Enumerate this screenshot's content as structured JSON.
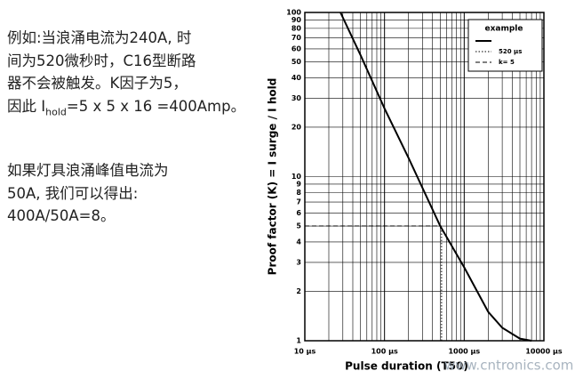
{
  "text": {
    "paragraph1": [
      "例如:当浪涌电流为240A, 时",
      "间为520微秒时，C16型断路",
      "器不会被触发。K因子为5，",
      [
        "因此 I",
        "hold",
        "=5 x 5 x 16 =400Amp。"
      ]
    ],
    "paragraph2": [
      "如果灯具浪涌峰值电流为",
      "50A, 我们可以得出:",
      "400A/50A=8。"
    ]
  },
  "chart_data": {
    "type": "line",
    "x_label": "Pulse duration (T50)",
    "y_label": "Proof factor (K) = I surge / I hold",
    "annotation": "www.cntronics.com",
    "legend_title": "example",
    "xscale": "log",
    "yscale": "log",
    "grid": true,
    "legend": "upper right",
    "xlim": [
      10,
      10000
    ],
    "ylim": [
      1,
      100
    ],
    "xticks": [
      {
        "value": 10,
        "label": "10 µs"
      },
      {
        "value": 100,
        "label": "100 µs"
      },
      {
        "value": 1000,
        "label": "1000 µs"
      },
      {
        "value": 10000,
        "label": "10000 µs"
      }
    ],
    "yticks": [
      1,
      2,
      3,
      4,
      5,
      6,
      7,
      8,
      9,
      10,
      20,
      30,
      40,
      50,
      60,
      70,
      80,
      90,
      100
    ],
    "series": [
      {
        "name": "",
        "color": "#000000",
        "style": "solid",
        "x": [
          28,
          50,
          100,
          200,
          500,
          1000,
          2000,
          3000,
          5000,
          7000
        ],
        "values": [
          100,
          55,
          26,
          13,
          5,
          2.8,
          1.5,
          1.2,
          1.03,
          1
        ]
      },
      {
        "name": "520 µs",
        "color": "#000000",
        "style": "dotted",
        "x": [
          520,
          520
        ],
        "values": [
          1,
          5
        ]
      },
      {
        "name": "k= 5",
        "color": "#000000",
        "style": "dashed",
        "x": [
          10,
          520
        ],
        "values": [
          5,
          5
        ]
      }
    ]
  }
}
